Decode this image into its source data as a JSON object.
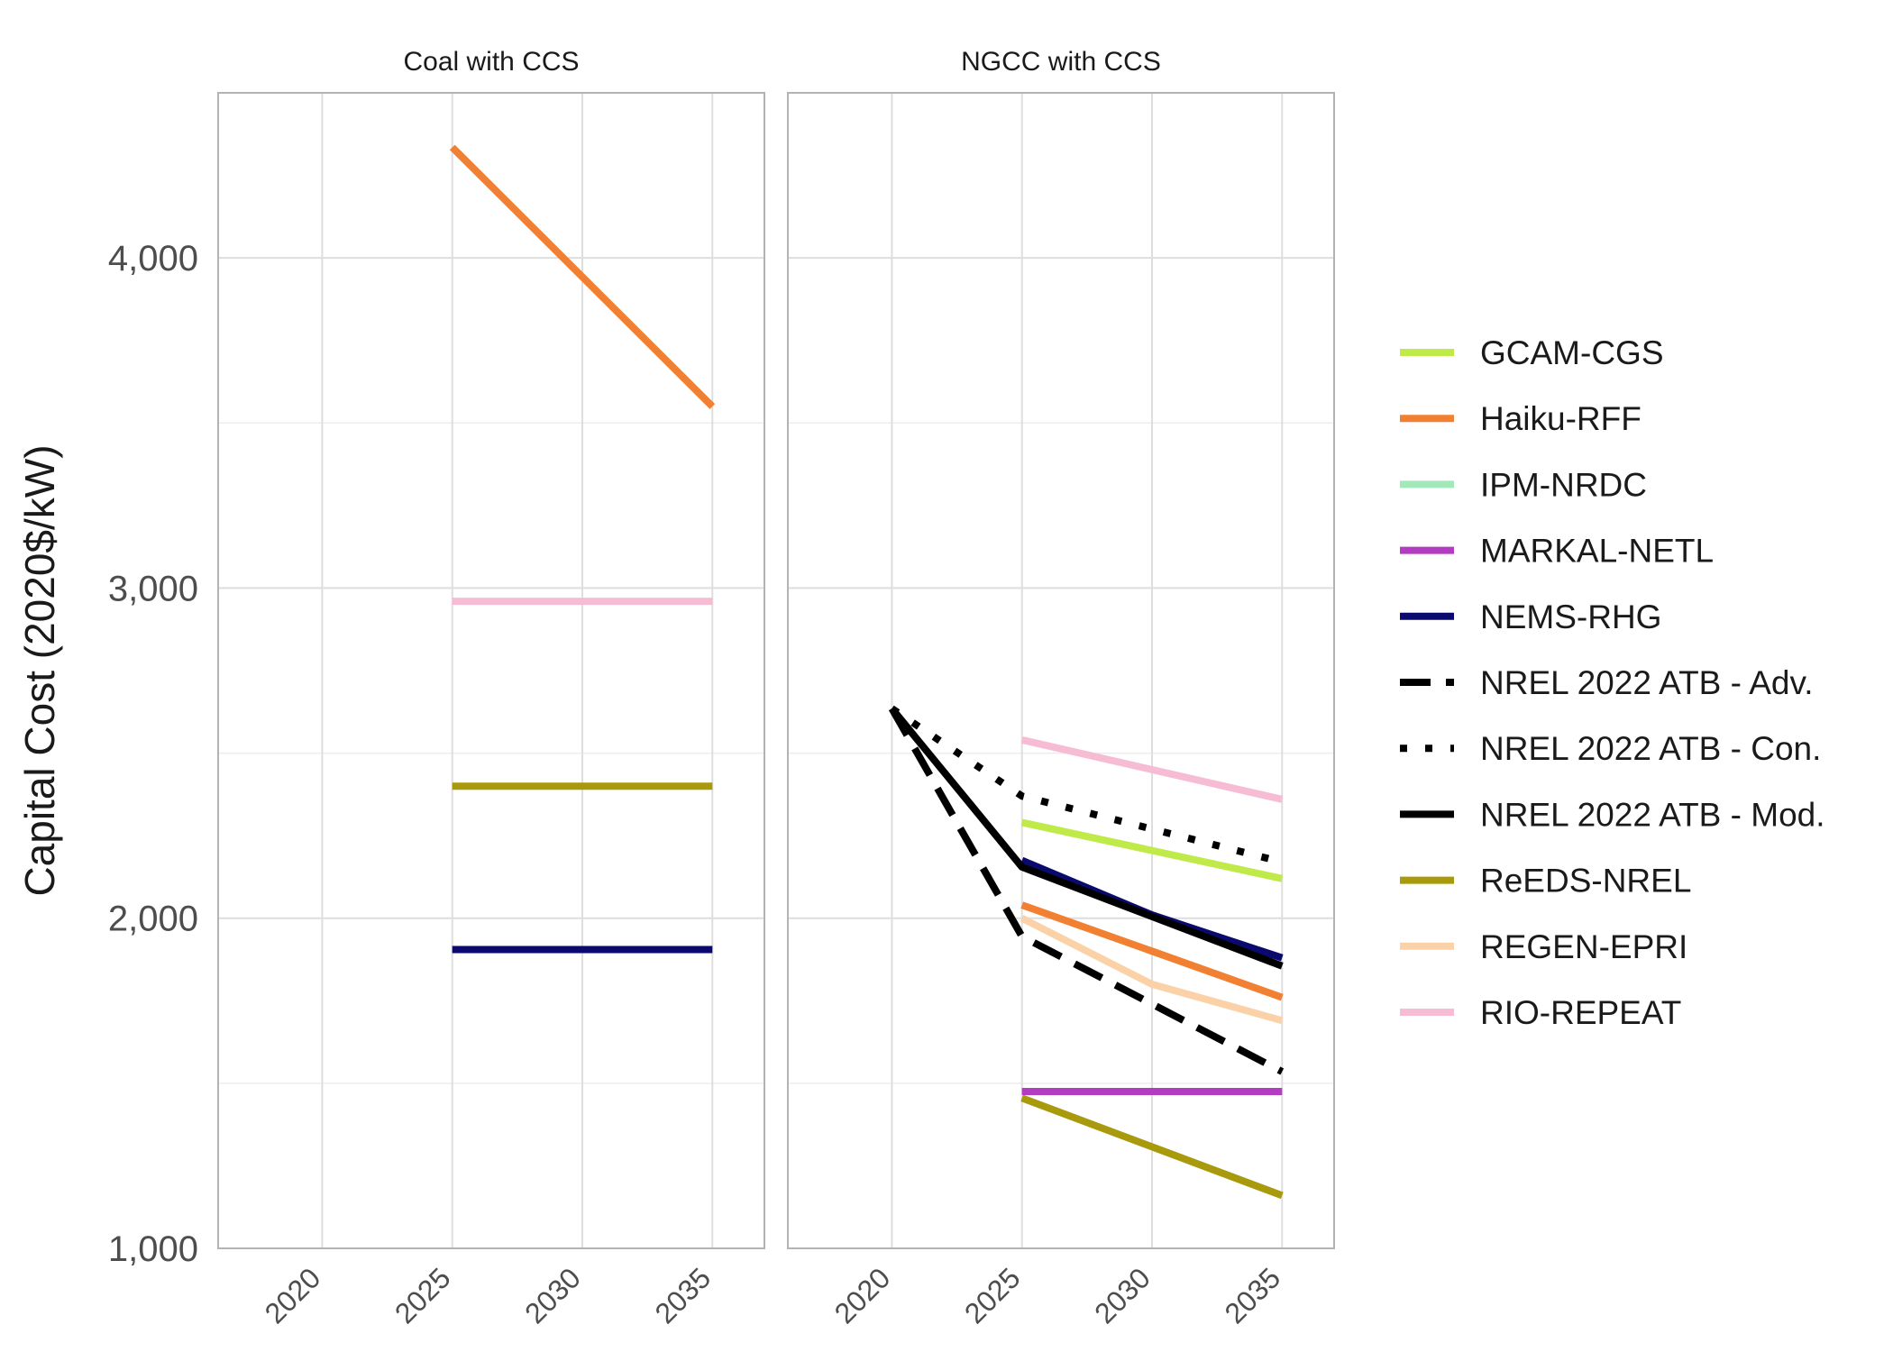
{
  "chart_data": {
    "type": "line",
    "ylabel": "Capital Cost (2020$/kW)",
    "xlabel": "",
    "ylim": [
      1000,
      4500
    ],
    "xlim": [
      2016,
      2037
    ],
    "yticks": [
      1000,
      2000,
      3000,
      4000
    ],
    "ytick_labels": [
      "1,000",
      "2,000",
      "3,000",
      "4,000"
    ],
    "xticks": [
      2020,
      2025,
      2030,
      2035
    ],
    "xtick_labels": [
      "2020",
      "2025",
      "2030",
      "2035"
    ],
    "grid": true,
    "legend_placement": "right",
    "legend": [
      {
        "name": "GCAM-CGS",
        "color": "#c0ea4a",
        "dash": "solid"
      },
      {
        "name": "Haiku-RFF",
        "color": "#f28033",
        "dash": "solid"
      },
      {
        "name": "IPM-NRDC",
        "color": "#a2e8bb",
        "dash": "solid"
      },
      {
        "name": "MARKAL-NETL",
        "color": "#b43cc3",
        "dash": "solid"
      },
      {
        "name": "NEMS-RHG",
        "color": "#0a0a6e",
        "dash": "solid"
      },
      {
        "name": "NREL 2022 ATB - Adv.",
        "color": "#000000",
        "dash": "longdash"
      },
      {
        "name": "NREL 2022 ATB - Con.",
        "color": "#000000",
        "dash": "dotted"
      },
      {
        "name": "NREL 2022 ATB - Mod.",
        "color": "#000000",
        "dash": "solid"
      },
      {
        "name": "ReEDS-NREL",
        "color": "#a89a0c",
        "dash": "solid"
      },
      {
        "name": "REGEN-EPRI",
        "color": "#fbd2a8",
        "dash": "solid"
      },
      {
        "name": "RIO-REPEAT",
        "color": "#f6bcd3",
        "dash": "solid"
      }
    ],
    "panels": [
      {
        "title": "Coal with CCS",
        "series": [
          {
            "name": "Haiku-RFF",
            "x": [
              2025,
              2035
            ],
            "y": [
              4335,
              3550
            ]
          },
          {
            "name": "RIO-REPEAT",
            "x": [
              2025,
              2035
            ],
            "y": [
              2960,
              2960
            ]
          },
          {
            "name": "ReEDS-NREL",
            "x": [
              2025,
              2035
            ],
            "y": [
              2400,
              2400
            ]
          },
          {
            "name": "NEMS-RHG",
            "x": [
              2025,
              2035
            ],
            "y": [
              1905,
              1905
            ]
          }
        ]
      },
      {
        "title": "NGCC with CCS",
        "series": [
          {
            "name": "RIO-REPEAT",
            "x": [
              2025,
              2035
            ],
            "y": [
              2540,
              2360
            ]
          },
          {
            "name": "GCAM-CGS",
            "x": [
              2025,
              2035
            ],
            "y": [
              2290,
              2120
            ]
          },
          {
            "name": "MARKAL-NETL",
            "x": [
              2025,
              2035
            ],
            "y": [
              1475,
              1475
            ]
          },
          {
            "name": "ReEDS-NREL",
            "x": [
              2025,
              2035
            ],
            "y": [
              1455,
              1160
            ]
          },
          {
            "name": "REGEN-EPRI",
            "x": [
              2025,
              2030,
              2035
            ],
            "y": [
              2000,
              1800,
              1690
            ]
          },
          {
            "name": "Haiku-RFF",
            "x": [
              2025,
              2030,
              2035
            ],
            "y": [
              2040,
              1900,
              1760
            ]
          },
          {
            "name": "NEMS-RHG",
            "x": [
              2025,
              2030,
              2035
            ],
            "y": [
              2175,
              2010,
              1880
            ]
          },
          {
            "name": "NREL 2022 ATB - Con.",
            "x": [
              2020,
              2025,
              2030,
              2035
            ],
            "y": [
              2635,
              2370,
              2270,
              2170
            ]
          },
          {
            "name": "NREL 2022 ATB - Mod.",
            "x": [
              2020,
              2025,
              2030,
              2035
            ],
            "y": [
              2635,
              2155,
              2005,
              1855
            ]
          },
          {
            "name": "NREL 2022 ATB - Adv.",
            "x": [
              2020,
              2025,
              2030,
              2035
            ],
            "y": [
              2635,
              1945,
              1740,
              1535
            ]
          }
        ]
      }
    ]
  }
}
